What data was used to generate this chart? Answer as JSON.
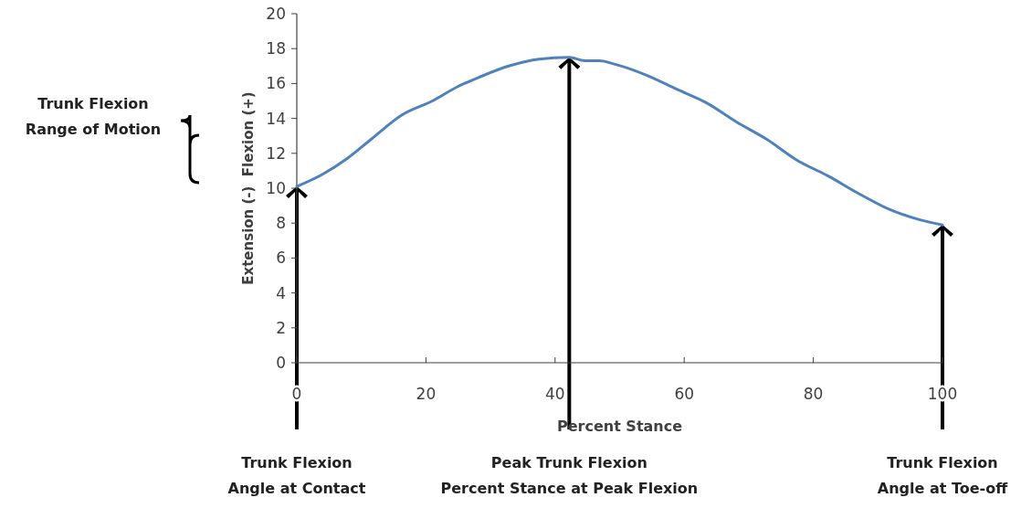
{
  "chart_data": {
    "type": "line",
    "xlabel": "Percent Stance",
    "ylabel": "Extension (-)  Flexion (+)",
    "xlim": [
      0,
      100
    ],
    "ylim": [
      0,
      20
    ],
    "xticks": [
      0,
      20,
      40,
      60,
      80,
      100
    ],
    "yticks": [
      0,
      2,
      4,
      6,
      8,
      10,
      12,
      14,
      16,
      18,
      20
    ],
    "grid": false,
    "marker": "none",
    "line_style": "solid",
    "series": [
      {
        "color": "#4f81bd",
        "x": [
          0,
          4,
          7.8,
          11.5,
          16.3,
          21,
          24.8,
          28.5,
          32.8,
          37.5,
          42.2,
          44.6,
          46.9,
          49.3,
          54,
          58.7,
          63.4,
          68.1,
          72.8,
          77.5,
          82.3,
          87,
          91.7,
          96.4,
          100
        ],
        "values": [
          10.1,
          10.8,
          11.7,
          12.8,
          14.2,
          15.0,
          15.8,
          16.4,
          17.0,
          17.4,
          17.5,
          17.3,
          17.3,
          17.1,
          16.5,
          15.7,
          14.9,
          13.8,
          12.8,
          11.6,
          10.7,
          9.7,
          8.8,
          8.2,
          7.9
        ]
      }
    ],
    "annotations": [
      "Trunk Flexion\nAngle at Contact",
      "Peak Trunk Flexion\nPercent Stance at Peak Flexion",
      "Trunk Flexion\nAngle at Toe-off",
      "Trunk Flexion\nRange of Motion"
    ]
  }
}
